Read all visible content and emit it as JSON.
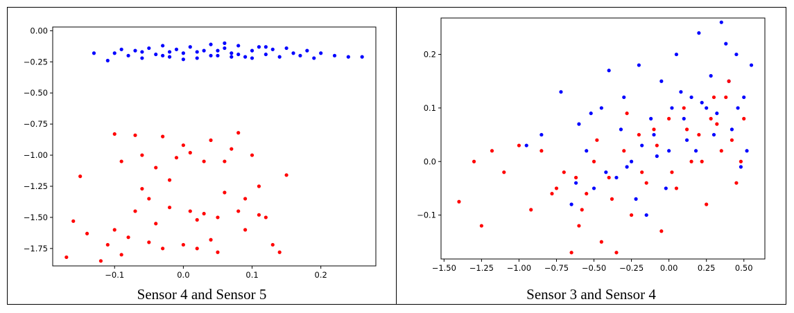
{
  "chart_data": [
    {
      "type": "scatter",
      "caption": "Sensor 4 and Sensor 5",
      "xlim": [
        -0.19,
        0.28
      ],
      "ylim": [
        -1.89,
        0.03
      ],
      "xticks": [
        -0.1,
        0.0,
        0.1,
        0.2
      ],
      "xtick_labels": [
        "−0.1",
        "0.0",
        "0.1",
        "0.2"
      ],
      "yticks": [
        0.0,
        -0.25,
        -0.5,
        -0.75,
        -1.0,
        -1.25,
        -1.5,
        -1.75
      ],
      "ytick_labels": [
        "0.00",
        "−0.25",
        "−0.50",
        "−0.75",
        "−1.00",
        "−1.25",
        "−1.50",
        "−1.75"
      ],
      "grid": false,
      "series": [
        {
          "color": "#0000ff",
          "points": [
            [
              -0.13,
              -0.18
            ],
            [
              -0.11,
              -0.24
            ],
            [
              -0.1,
              -0.18
            ],
            [
              -0.09,
              -0.15
            ],
            [
              -0.08,
              -0.2
            ],
            [
              -0.07,
              -0.16
            ],
            [
              -0.06,
              -0.22
            ],
            [
              -0.05,
              -0.14
            ],
            [
              -0.04,
              -0.19
            ],
            [
              -0.03,
              -0.12
            ],
            [
              -0.02,
              -0.21
            ],
            [
              -0.01,
              -0.15
            ],
            [
              0.0,
              -0.18
            ],
            [
              0.01,
              -0.13
            ],
            [
              0.02,
              -0.22
            ],
            [
              0.03,
              -0.16
            ],
            [
              0.04,
              -0.11
            ],
            [
              0.05,
              -0.2
            ],
            [
              0.06,
              -0.14
            ],
            [
              0.07,
              -0.18
            ],
            [
              0.08,
              -0.12
            ],
            [
              0.09,
              -0.21
            ],
            [
              0.1,
              -0.16
            ],
            [
              0.11,
              -0.13
            ],
            [
              0.12,
              -0.19
            ],
            [
              0.13,
              -0.15
            ],
            [
              0.14,
              -0.21
            ],
            [
              0.15,
              -0.14
            ],
            [
              0.16,
              -0.18
            ],
            [
              0.17,
              -0.2
            ],
            [
              0.18,
              -0.16
            ],
            [
              0.19,
              -0.22
            ],
            [
              0.2,
              -0.18
            ],
            [
              0.22,
              -0.2
            ],
            [
              0.24,
              -0.21
            ],
            [
              0.26,
              -0.21
            ],
            [
              -0.06,
              -0.17
            ],
            [
              -0.03,
              -0.2
            ],
            [
              0.0,
              -0.23
            ],
            [
              0.02,
              -0.17
            ],
            [
              0.05,
              -0.16
            ],
            [
              0.08,
              -0.19
            ],
            [
              0.1,
              -0.22
            ],
            [
              0.04,
              -0.2
            ],
            [
              0.06,
              -0.1
            ],
            [
              -0.02,
              -0.17
            ],
            [
              0.12,
              -0.13
            ],
            [
              0.07,
              -0.21
            ]
          ]
        },
        {
          "color": "#ff0000",
          "points": [
            [
              -0.17,
              -1.82
            ],
            [
              -0.16,
              -1.53
            ],
            [
              -0.15,
              -1.17
            ],
            [
              -0.14,
              -1.63
            ],
            [
              -0.12,
              -1.85
            ],
            [
              -0.11,
              -1.72
            ],
            [
              -0.1,
              -1.6
            ],
            [
              -0.09,
              -1.8
            ],
            [
              -0.08,
              -1.66
            ],
            [
              -0.1,
              -0.83
            ],
            [
              -0.09,
              -1.05
            ],
            [
              -0.07,
              -0.84
            ],
            [
              -0.06,
              -1.0
            ],
            [
              -0.05,
              -1.35
            ],
            [
              -0.04,
              -1.55
            ],
            [
              -0.03,
              -0.85
            ],
            [
              -0.02,
              -1.2
            ],
            [
              -0.01,
              -1.02
            ],
            [
              0.0,
              -0.92
            ],
            [
              0.01,
              -1.45
            ],
            [
              0.02,
              -1.75
            ],
            [
              0.03,
              -1.05
            ],
            [
              0.04,
              -0.88
            ],
            [
              0.05,
              -1.5
            ],
            [
              0.06,
              -1.3
            ],
            [
              0.07,
              -0.95
            ],
            [
              0.08,
              -1.45
            ],
            [
              0.09,
              -1.6
            ],
            [
              0.1,
              -1.0
            ],
            [
              0.11,
              -1.25
            ],
            [
              0.12,
              -1.5
            ],
            [
              0.13,
              -1.72
            ],
            [
              0.14,
              -1.78
            ],
            [
              0.15,
              -1.16
            ],
            [
              -0.03,
              -1.75
            ],
            [
              0.0,
              -1.72
            ],
            [
              0.03,
              -1.47
            ],
            [
              0.05,
              -1.78
            ],
            [
              -0.07,
              -1.45
            ],
            [
              -0.06,
              -1.27
            ],
            [
              0.01,
              -0.98
            ],
            [
              0.06,
              -1.05
            ],
            [
              0.08,
              -0.82
            ],
            [
              -0.04,
              -1.1
            ],
            [
              0.09,
              -1.35
            ],
            [
              0.02,
              -1.52
            ],
            [
              -0.05,
              -1.7
            ],
            [
              0.11,
              -1.48
            ],
            [
              0.04,
              -1.68
            ],
            [
              -0.02,
              -1.42
            ]
          ]
        }
      ]
    },
    {
      "type": "scatter",
      "caption": "Sensor 3 and Sensor 4",
      "xlim": [
        -1.52,
        0.64
      ],
      "ylim": [
        -0.182,
        0.268
      ],
      "xticks": [
        -1.5,
        -1.25,
        -1.0,
        -0.75,
        -0.5,
        -0.25,
        0.0,
        0.25,
        0.5
      ],
      "xtick_labels": [
        "−1.50",
        "−1.25",
        "−1.00",
        "−0.75",
        "−0.50",
        "−0.25",
        "0.00",
        "0.25",
        "0.50"
      ],
      "yticks": [
        0.2,
        0.1,
        0.0,
        -0.1
      ],
      "ytick_labels": [
        "0.2",
        "0.1",
        "0.0",
        "−0.1"
      ],
      "grid": false,
      "series": [
        {
          "color": "#0000ff",
          "points": [
            [
              -0.95,
              0.03
            ],
            [
              -0.85,
              0.05
            ],
            [
              -0.72,
              0.13
            ],
            [
              -0.65,
              -0.08
            ],
            [
              -0.6,
              0.07
            ],
            [
              -0.55,
              0.02
            ],
            [
              -0.5,
              -0.05
            ],
            [
              -0.45,
              0.1
            ],
            [
              -0.4,
              0.17
            ],
            [
              -0.35,
              -0.03
            ],
            [
              -0.3,
              0.12
            ],
            [
              -0.25,
              0.0
            ],
            [
              -0.2,
              0.18
            ],
            [
              -0.15,
              -0.1
            ],
            [
              -0.1,
              0.05
            ],
            [
              -0.05,
              0.15
            ],
            [
              0.0,
              0.02
            ],
            [
              0.05,
              0.2
            ],
            [
              0.1,
              0.08
            ],
            [
              0.15,
              0.12
            ],
            [
              0.2,
              0.24
            ],
            [
              0.25,
              0.1
            ],
            [
              0.3,
              0.05
            ],
            [
              0.35,
              0.26
            ],
            [
              0.4,
              0.15
            ],
            [
              0.45,
              0.2
            ],
            [
              0.5,
              0.12
            ],
            [
              0.55,
              0.18
            ],
            [
              0.48,
              -0.01
            ],
            [
              0.38,
              0.22
            ],
            [
              0.28,
              0.16
            ],
            [
              0.18,
              0.02
            ],
            [
              0.08,
              0.13
            ],
            [
              -0.02,
              -0.05
            ],
            [
              -0.12,
              0.08
            ],
            [
              -0.22,
              -0.07
            ],
            [
              -0.32,
              0.06
            ],
            [
              -0.42,
              -0.02
            ],
            [
              -0.52,
              0.09
            ],
            [
              -0.62,
              -0.04
            ],
            [
              0.32,
              0.09
            ],
            [
              0.42,
              0.06
            ],
            [
              0.52,
              0.02
            ],
            [
              0.22,
              0.11
            ],
            [
              0.12,
              0.04
            ],
            [
              0.02,
              0.1
            ],
            [
              -0.08,
              0.01
            ],
            [
              -0.18,
              0.03
            ],
            [
              -0.28,
              -0.01
            ],
            [
              0.46,
              0.1
            ]
          ]
        },
        {
          "color": "#ff0000",
          "points": [
            [
              -1.4,
              -0.075
            ],
            [
              -1.3,
              0.0
            ],
            [
              -1.25,
              -0.12
            ],
            [
              -1.18,
              0.02
            ],
            [
              -1.1,
              -0.02
            ],
            [
              -1.0,
              0.03
            ],
            [
              -0.92,
              -0.09
            ],
            [
              -0.85,
              0.02
            ],
            [
              -0.78,
              -0.06
            ],
            [
              -0.7,
              -0.02
            ],
            [
              -0.65,
              -0.17
            ],
            [
              -0.6,
              -0.12
            ],
            [
              -0.55,
              -0.06
            ],
            [
              -0.5,
              0.0
            ],
            [
              -0.45,
              -0.15
            ],
            [
              -0.4,
              -0.03
            ],
            [
              -0.35,
              -0.17
            ],
            [
              -0.3,
              0.02
            ],
            [
              -0.25,
              -0.1
            ],
            [
              -0.2,
              0.05
            ],
            [
              -0.15,
              -0.04
            ],
            [
              -0.1,
              0.06
            ],
            [
              -0.05,
              -0.13
            ],
            [
              0.0,
              0.08
            ],
            [
              0.05,
              -0.05
            ],
            [
              0.1,
              0.1
            ],
            [
              0.15,
              0.0
            ],
            [
              0.2,
              0.05
            ],
            [
              0.25,
              -0.08
            ],
            [
              0.3,
              0.12
            ],
            [
              0.35,
              0.02
            ],
            [
              0.4,
              0.15
            ],
            [
              0.45,
              -0.04
            ],
            [
              0.5,
              0.08
            ],
            [
              -0.58,
              -0.09
            ],
            [
              -0.48,
              0.04
            ],
            [
              -0.38,
              -0.07
            ],
            [
              -0.28,
              0.09
            ],
            [
              -0.18,
              -0.02
            ],
            [
              -0.08,
              0.03
            ],
            [
              0.02,
              -0.02
            ],
            [
              0.12,
              0.06
            ],
            [
              0.22,
              0.0
            ],
            [
              0.32,
              0.07
            ],
            [
              0.42,
              0.04
            ],
            [
              -0.62,
              -0.03
            ],
            [
              0.38,
              0.12
            ],
            [
              0.28,
              0.08
            ],
            [
              -0.75,
              -0.05
            ],
            [
              0.48,
              0.0
            ]
          ]
        }
      ]
    }
  ]
}
